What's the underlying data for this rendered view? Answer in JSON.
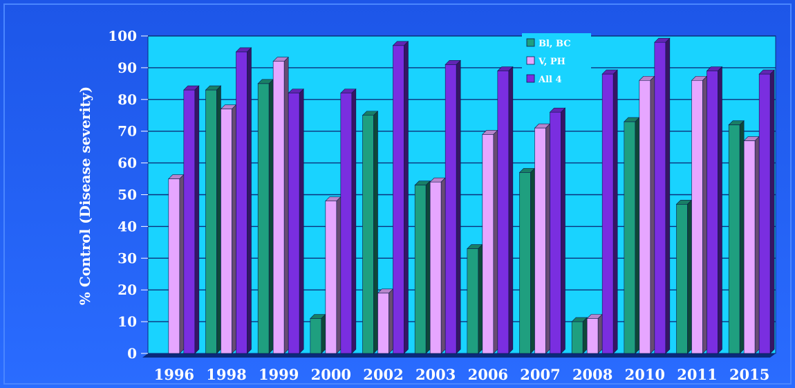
{
  "chart_data": {
    "type": "bar",
    "title": "",
    "xlabel": "",
    "ylabel": "% Control (Disease severity)",
    "ylim": [
      0,
      100
    ],
    "yticks": [
      0,
      10,
      20,
      30,
      40,
      50,
      60,
      70,
      80,
      90,
      100
    ],
    "grid": true,
    "legend_position": "top-center",
    "categories": [
      "1996",
      "1998",
      "1999",
      "2000",
      "2002",
      "2003",
      "2006",
      "2007",
      "2008",
      "2010",
      "2011",
      "2015"
    ],
    "series": [
      {
        "name": "Bl, BC",
        "color": "#1f9f7f",
        "values": [
          0,
          83,
          85,
          11,
          75,
          53,
          33,
          57,
          10,
          73,
          47,
          72
        ]
      },
      {
        "name": "V, PH",
        "color": "#e6a6ff",
        "values": [
          55,
          77,
          92,
          48,
          19,
          54,
          69,
          71,
          11,
          86,
          86,
          67
        ]
      },
      {
        "name": "All 4",
        "color": "#7a2ee0",
        "values": [
          83,
          95,
          82,
          82,
          97,
          91,
          89,
          76,
          88,
          98,
          89,
          88
        ]
      }
    ]
  },
  "colors": {
    "background": "#1a5cf2",
    "plot_area": "#19d3ff",
    "grid": "#0b2f7a",
    "text": "#ffffff"
  }
}
